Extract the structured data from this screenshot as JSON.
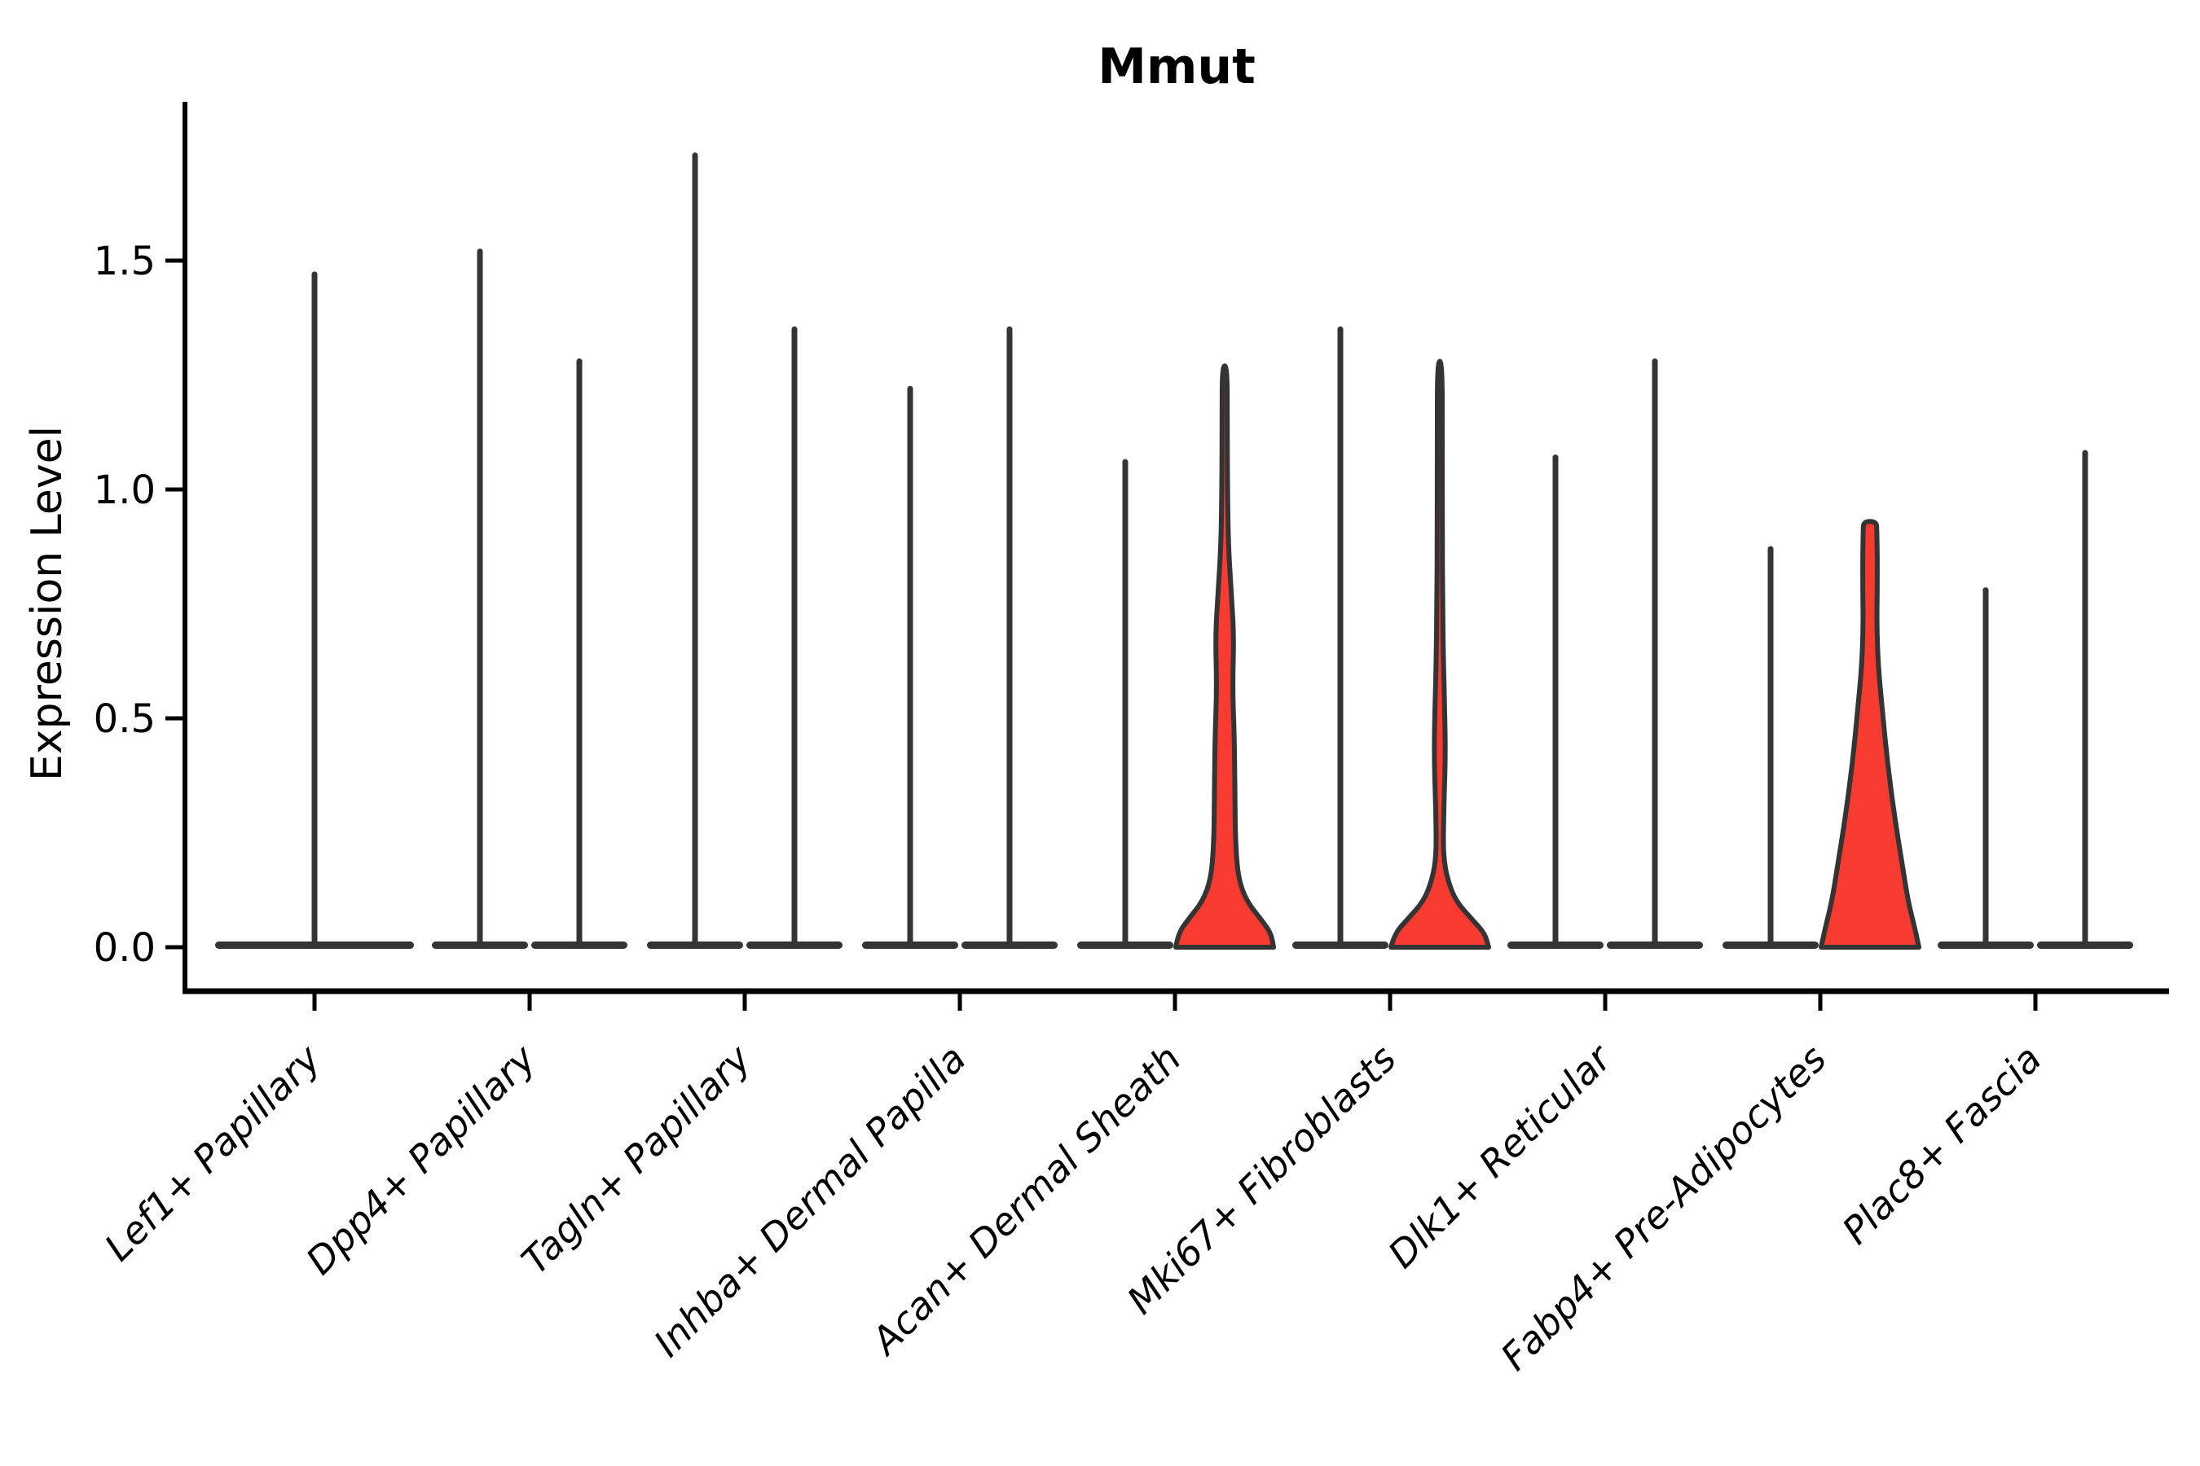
{
  "title": "Mmut",
  "axes": {
    "ylabel": "Expression Level",
    "ytick_labels": [
      "0.0",
      "0.5",
      "1.0",
      "1.5"
    ]
  },
  "chart_data": {
    "type": "violin",
    "title": "Mmut",
    "ylabel": "Expression Level",
    "xlabel": "",
    "grid": false,
    "legend_position": "none",
    "ylim": [
      -0.1,
      1.85
    ],
    "yticks": [
      0.0,
      0.5,
      1.0,
      1.5
    ],
    "ytick_labels": [
      "0.0",
      "0.5",
      "1.0",
      "1.5"
    ],
    "categories": [
      "Lef1+ Papillary",
      "Dpp4+ Papillary",
      "Tagln+ Papillary",
      "Inhba+ Dermal Papilla",
      "Acan+ Dermal Sheath",
      "Mki67+ Fibroblasts",
      "Dlk1+ Reticular",
      "Fabp4+ Pre-Adipocytes",
      "Plac8+ Fascia"
    ],
    "highlight_color": "#f83b30",
    "violin_color": "#343434",
    "axis_color": "#000000",
    "violins": [
      {
        "category": "Lef1+ Papillary",
        "position": "center",
        "max_expression": 1.47,
        "highlighted": false
      },
      {
        "category": "Dpp4+ Papillary",
        "position": "left",
        "max_expression": 1.52,
        "highlighted": false
      },
      {
        "category": "Dpp4+ Papillary",
        "position": "right",
        "max_expression": 1.28,
        "highlighted": false
      },
      {
        "category": "Tagln+ Papillary",
        "position": "left",
        "max_expression": 1.73,
        "highlighted": false
      },
      {
        "category": "Tagln+ Papillary",
        "position": "right",
        "max_expression": 1.35,
        "highlighted": false
      },
      {
        "category": "Inhba+ Dermal Papilla",
        "position": "left",
        "max_expression": 1.22,
        "highlighted": false
      },
      {
        "category": "Inhba+ Dermal Papilla",
        "position": "right",
        "max_expression": 1.35,
        "highlighted": false
      },
      {
        "category": "Acan+ Dermal Sheath",
        "position": "left",
        "max_expression": 1.06,
        "highlighted": false
      },
      {
        "category": "Acan+ Dermal Sheath",
        "position": "right",
        "max_expression": 1.27,
        "highlighted": true,
        "profile": [
          [
            0,
            1.0
          ],
          [
            0.03,
            0.95
          ],
          [
            0.06,
            0.75
          ],
          [
            0.1,
            0.45
          ],
          [
            0.15,
            0.28
          ],
          [
            0.22,
            0.225
          ],
          [
            0.32,
            0.21
          ],
          [
            0.45,
            0.2
          ],
          [
            0.57,
            0.16
          ],
          [
            0.68,
            0.19
          ],
          [
            0.78,
            0.13
          ],
          [
            0.88,
            0.075
          ],
          [
            1.0,
            0.058
          ],
          [
            1.15,
            0.053
          ],
          [
            1.27,
            0.05
          ]
        ]
      },
      {
        "category": "Mki67+ Fibroblasts",
        "position": "left",
        "max_expression": 1.35,
        "highlighted": false
      },
      {
        "category": "Mki67+ Fibroblasts",
        "position": "right",
        "max_expression": 1.28,
        "highlighted": true,
        "profile": [
          [
            0,
            1.0
          ],
          [
            0.03,
            0.92
          ],
          [
            0.06,
            0.67
          ],
          [
            0.1,
            0.33
          ],
          [
            0.15,
            0.15
          ],
          [
            0.2,
            0.075
          ],
          [
            0.26,
            0.075
          ],
          [
            0.33,
            0.09
          ],
          [
            0.42,
            0.115
          ],
          [
            0.52,
            0.1
          ],
          [
            0.62,
            0.075
          ],
          [
            0.75,
            0.058
          ],
          [
            0.9,
            0.053
          ],
          [
            1.1,
            0.05
          ],
          [
            1.28,
            0.05
          ]
        ]
      },
      {
        "category": "Dlk1+ Reticular",
        "position": "left",
        "max_expression": 1.07,
        "highlighted": false
      },
      {
        "category": "Dlk1+ Reticular",
        "position": "right",
        "max_expression": 1.28,
        "highlighted": false
      },
      {
        "category": "Fabp4+ Pre-Adipocytes",
        "position": "left",
        "max_expression": 0.87,
        "highlighted": false
      },
      {
        "category": "Fabp4+ Pre-Adipocytes",
        "position": "right",
        "max_expression": 0.93,
        "highlighted": true,
        "profile": [
          [
            0,
            1.0
          ],
          [
            0.04,
            0.92
          ],
          [
            0.1,
            0.78
          ],
          [
            0.18,
            0.66
          ],
          [
            0.28,
            0.51
          ],
          [
            0.4,
            0.36
          ],
          [
            0.52,
            0.25
          ],
          [
            0.62,
            0.165
          ],
          [
            0.7,
            0.14
          ],
          [
            0.78,
            0.148
          ],
          [
            0.86,
            0.148
          ],
          [
            0.91,
            0.14
          ],
          [
            0.93,
            0.13
          ]
        ]
      },
      {
        "category": "Plac8+ Fascia",
        "position": "left",
        "max_expression": 0.78,
        "highlighted": false
      },
      {
        "category": "Plac8+ Fascia",
        "position": "right",
        "max_expression": 1.08,
        "highlighted": false
      }
    ]
  }
}
